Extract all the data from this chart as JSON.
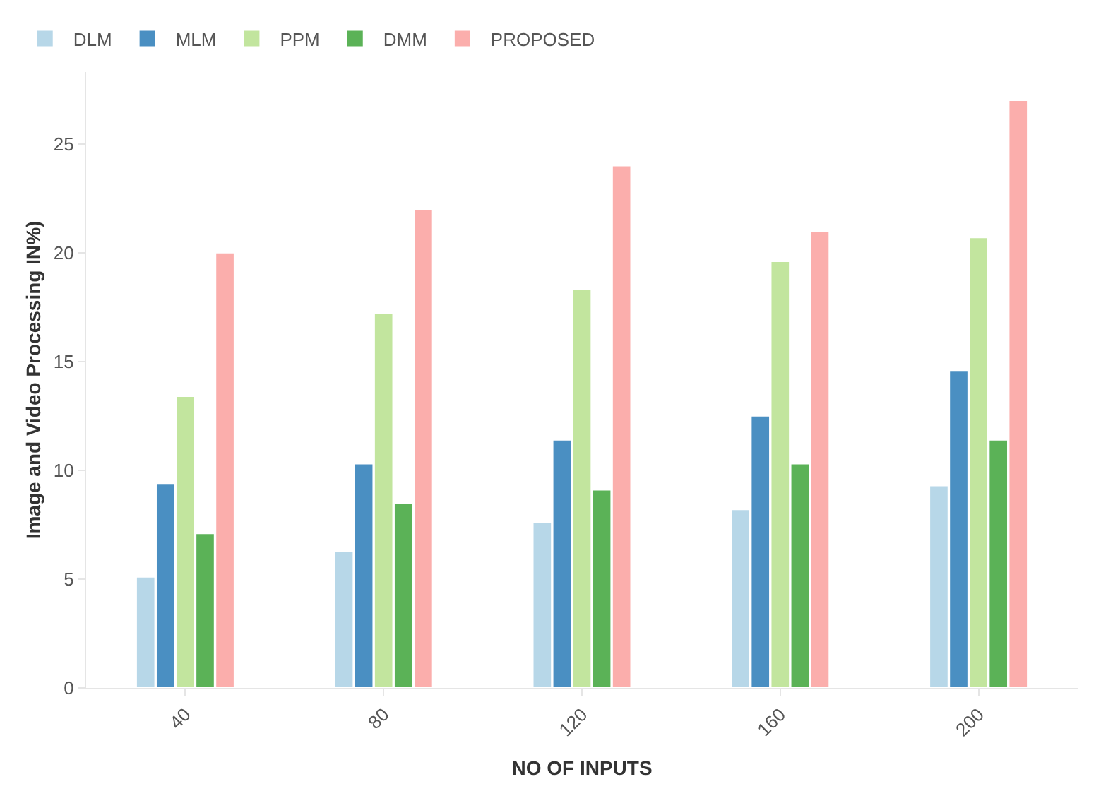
{
  "chart_data": {
    "type": "bar",
    "xlabel": "NO OF INPUTS",
    "ylabel": "Image and Video Processing IN%)",
    "categories": [
      "40",
      "80",
      "120",
      "160",
      "200"
    ],
    "series": [
      {
        "name": "DLM",
        "color": "#b7d7e8",
        "values": [
          5.1,
          6.3,
          7.6,
          8.2,
          9.3
        ]
      },
      {
        "name": "MLM",
        "color": "#4a8fc2",
        "values": [
          9.4,
          10.3,
          11.4,
          12.5,
          14.6
        ]
      },
      {
        "name": "PPM",
        "color": "#c2e59e",
        "values": [
          13.4,
          17.2,
          18.3,
          19.6,
          20.7
        ]
      },
      {
        "name": "DMM",
        "color": "#5bb257",
        "values": [
          7.1,
          8.5,
          9.1,
          10.3,
          11.4
        ]
      },
      {
        "name": "PROPOSED",
        "color": "#fbaeac",
        "values": [
          20,
          22,
          24,
          21,
          27
        ]
      }
    ],
    "ylim": [
      0,
      28.3
    ],
    "yticks": [
      0,
      5,
      10,
      15,
      20,
      25
    ],
    "legend": "top left"
  }
}
